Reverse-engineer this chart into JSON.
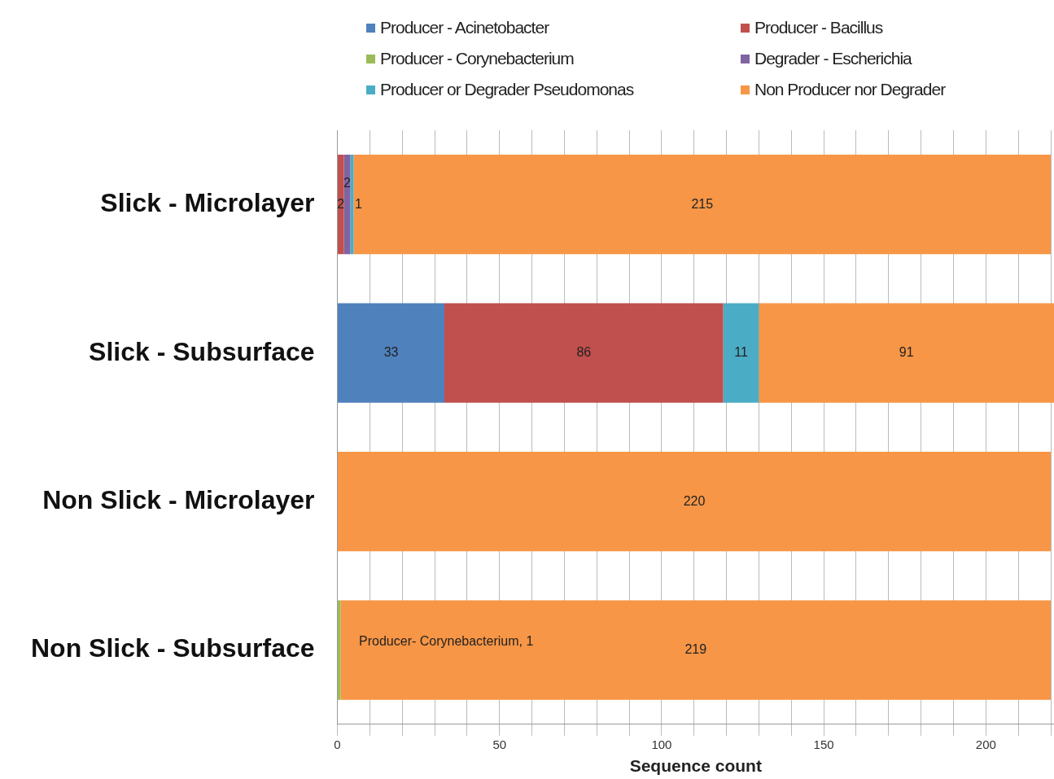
{
  "chart_data": {
    "type": "bar",
    "orientation": "horizontal",
    "stacked": true,
    "xlabel": "Sequence count",
    "categories": [
      "Slick - Microlayer",
      "Slick - Subsurface",
      "Non Slick - Microlayer",
      "Non Slick - Subsurface"
    ],
    "series": [
      {
        "name": "Producer - Acinetobacter",
        "color": "#4f81bd",
        "values": [
          null,
          33,
          null,
          null
        ],
        "value_labels": [
          null,
          "33",
          null,
          null
        ]
      },
      {
        "name": "Producer - Bacillus",
        "color": "#c0504d",
        "values": [
          2,
          86,
          null,
          null
        ],
        "value_labels": [
          "2",
          "86",
          null,
          null
        ]
      },
      {
        "name": "Producer - Corynebacterium",
        "color": "#9bbb59",
        "values": [
          null,
          null,
          null,
          1
        ],
        "value_labels": [
          null,
          null,
          null,
          "Producer- Corynebacterium, 1"
        ]
      },
      {
        "name": "Degrader - Escherichia",
        "color": "#8064a2",
        "values": [
          2,
          null,
          null,
          null
        ],
        "value_labels": [
          "2",
          null,
          null,
          null
        ]
      },
      {
        "name": "Producer or Degrader Pseudomonas",
        "color": "#4bacc6",
        "values": [
          1,
          11,
          null,
          null
        ],
        "value_labels": [
          "1",
          "11",
          null,
          null
        ]
      },
      {
        "name": "Non Producer nor Degrader",
        "color": "#f79646",
        "values": [
          215,
          91,
          220,
          219
        ],
        "value_labels": [
          "215",
          "91",
          "220",
          "219"
        ]
      }
    ],
    "xlim": [
      0,
      221
    ],
    "xticks": [
      0,
      {
        "value": 10,
        "label": null
      },
      {
        "value": 20,
        "label": null
      },
      {
        "value": 30,
        "label": null
      },
      {
        "value": 40,
        "label": null
      },
      50,
      {
        "value": 60,
        "label": null
      },
      {
        "value": 70,
        "label": null
      },
      {
        "value": 80,
        "label": null
      },
      {
        "value": 90,
        "label": null
      },
      100,
      {
        "value": 110,
        "label": null
      },
      {
        "value": 120,
        "label": null
      },
      {
        "value": 130,
        "label": null
      },
      {
        "value": 140,
        "label": null
      },
      150,
      {
        "value": 160,
        "label": null
      },
      {
        "value": 170,
        "label": null
      },
      {
        "value": 180,
        "label": null
      },
      {
        "value": 190,
        "label": null
      },
      200,
      {
        "value": 210,
        "label": null
      },
      {
        "value": 220,
        "label": null
      }
    ],
    "grid": "x",
    "legend": "top"
  }
}
